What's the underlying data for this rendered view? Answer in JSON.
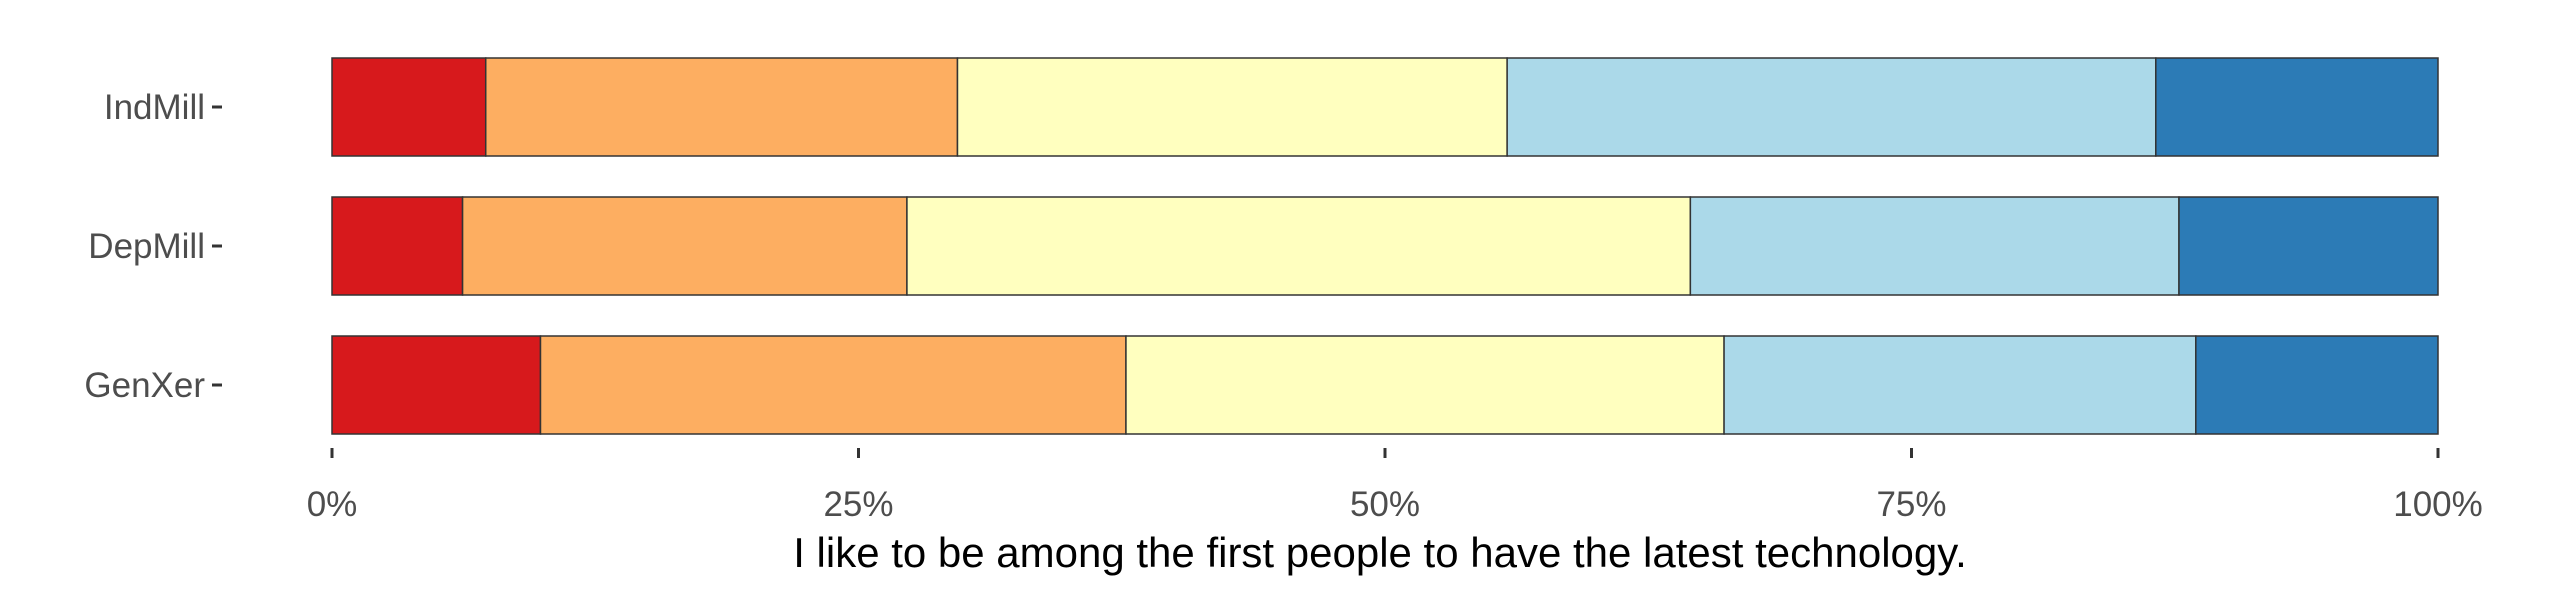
{
  "chart_data": {
    "type": "bar",
    "orientation": "horizontal",
    "stacked": true,
    "normalized": true,
    "title": "",
    "xlabel": "I like to be among the first people to have the latest technology.",
    "ylabel": "",
    "xlim": [
      0,
      100
    ],
    "x_ticks": [
      0,
      25,
      50,
      75,
      100
    ],
    "x_tick_labels": [
      "0%",
      "25%",
      "50%",
      "75%",
      "100%"
    ],
    "grid": false,
    "legend": "none",
    "categories": [
      "IndMill",
      "DepMill",
      "GenXer"
    ],
    "series": [
      {
        "color": "#d7191c",
        "values": [
          7.3,
          6.2,
          9.9
        ]
      },
      {
        "color": "#fdae61",
        "values": [
          22.4,
          21.1,
          27.8
        ]
      },
      {
        "color": "#ffffbf",
        "values": [
          26.1,
          37.2,
          28.4
        ]
      },
      {
        "color": "#abd9e9",
        "values": [
          30.8,
          23.2,
          22.4
        ]
      },
      {
        "color": "#2c7bb6",
        "values": [
          13.4,
          12.3,
          11.5
        ]
      }
    ]
  }
}
